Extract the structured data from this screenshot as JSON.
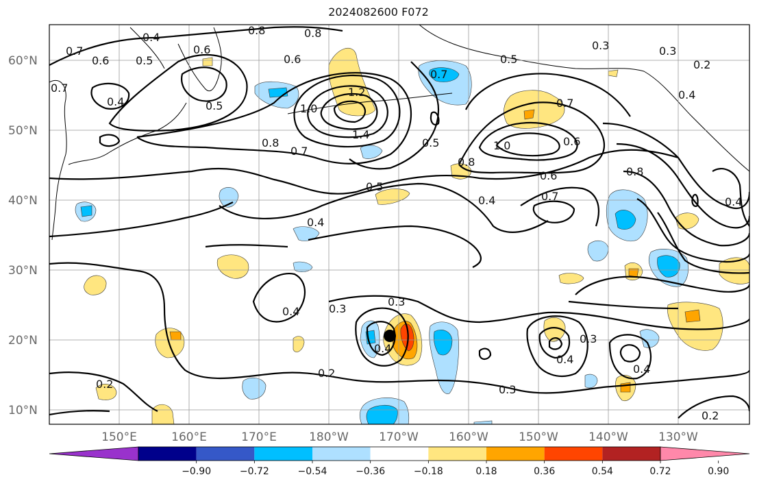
{
  "title": "2024082600 F072",
  "map": {
    "lat_labels": [
      "60°N",
      "50°N",
      "40°N",
      "30°N",
      "20°N",
      "10°N"
    ],
    "lon_labels": [
      "150°E",
      "160°E",
      "170°E",
      "180°W",
      "170°W",
      "160°W",
      "150°W",
      "140°W",
      "130°W"
    ],
    "contour_labels": [
      "0.4",
      "0.8",
      "0.8",
      "0.7",
      "0.6",
      "0.5",
      "0.6",
      "0.5",
      "0.4",
      "0.7",
      "0.6",
      "0.7",
      "0.5",
      "0.3",
      "0.3",
      "0.2",
      "1.2",
      "1.0",
      "1.4",
      "0.5",
      "0.8",
      "0.7",
      "1.0",
      "0.8",
      "0.7",
      "0.6",
      "0.5",
      "0.4",
      "0.4",
      "0.6",
      "0.7",
      "0.8",
      "0.4",
      "0.3",
      "0.3",
      "0.4",
      "0.2",
      "0.2",
      "0.3",
      "0.4",
      "0.3",
      "0.4",
      "0.2",
      "0.4",
      "0.4"
    ],
    "marker": "storm-center"
  },
  "colorbar": {
    "ticks": [
      "−0.90",
      "−0.72",
      "−0.54",
      "−0.36",
      "−0.18",
      "0.18",
      "0.36",
      "0.54",
      "0.72",
      "0.90"
    ],
    "colors": [
      "#9932cc",
      "#00008b",
      "#3558c8",
      "#00bfff",
      "#aee0ff",
      "#ffffff",
      "#ffe680",
      "#ffa500",
      "#ff4500",
      "#b22222",
      "#ff88aa"
    ]
  }
}
